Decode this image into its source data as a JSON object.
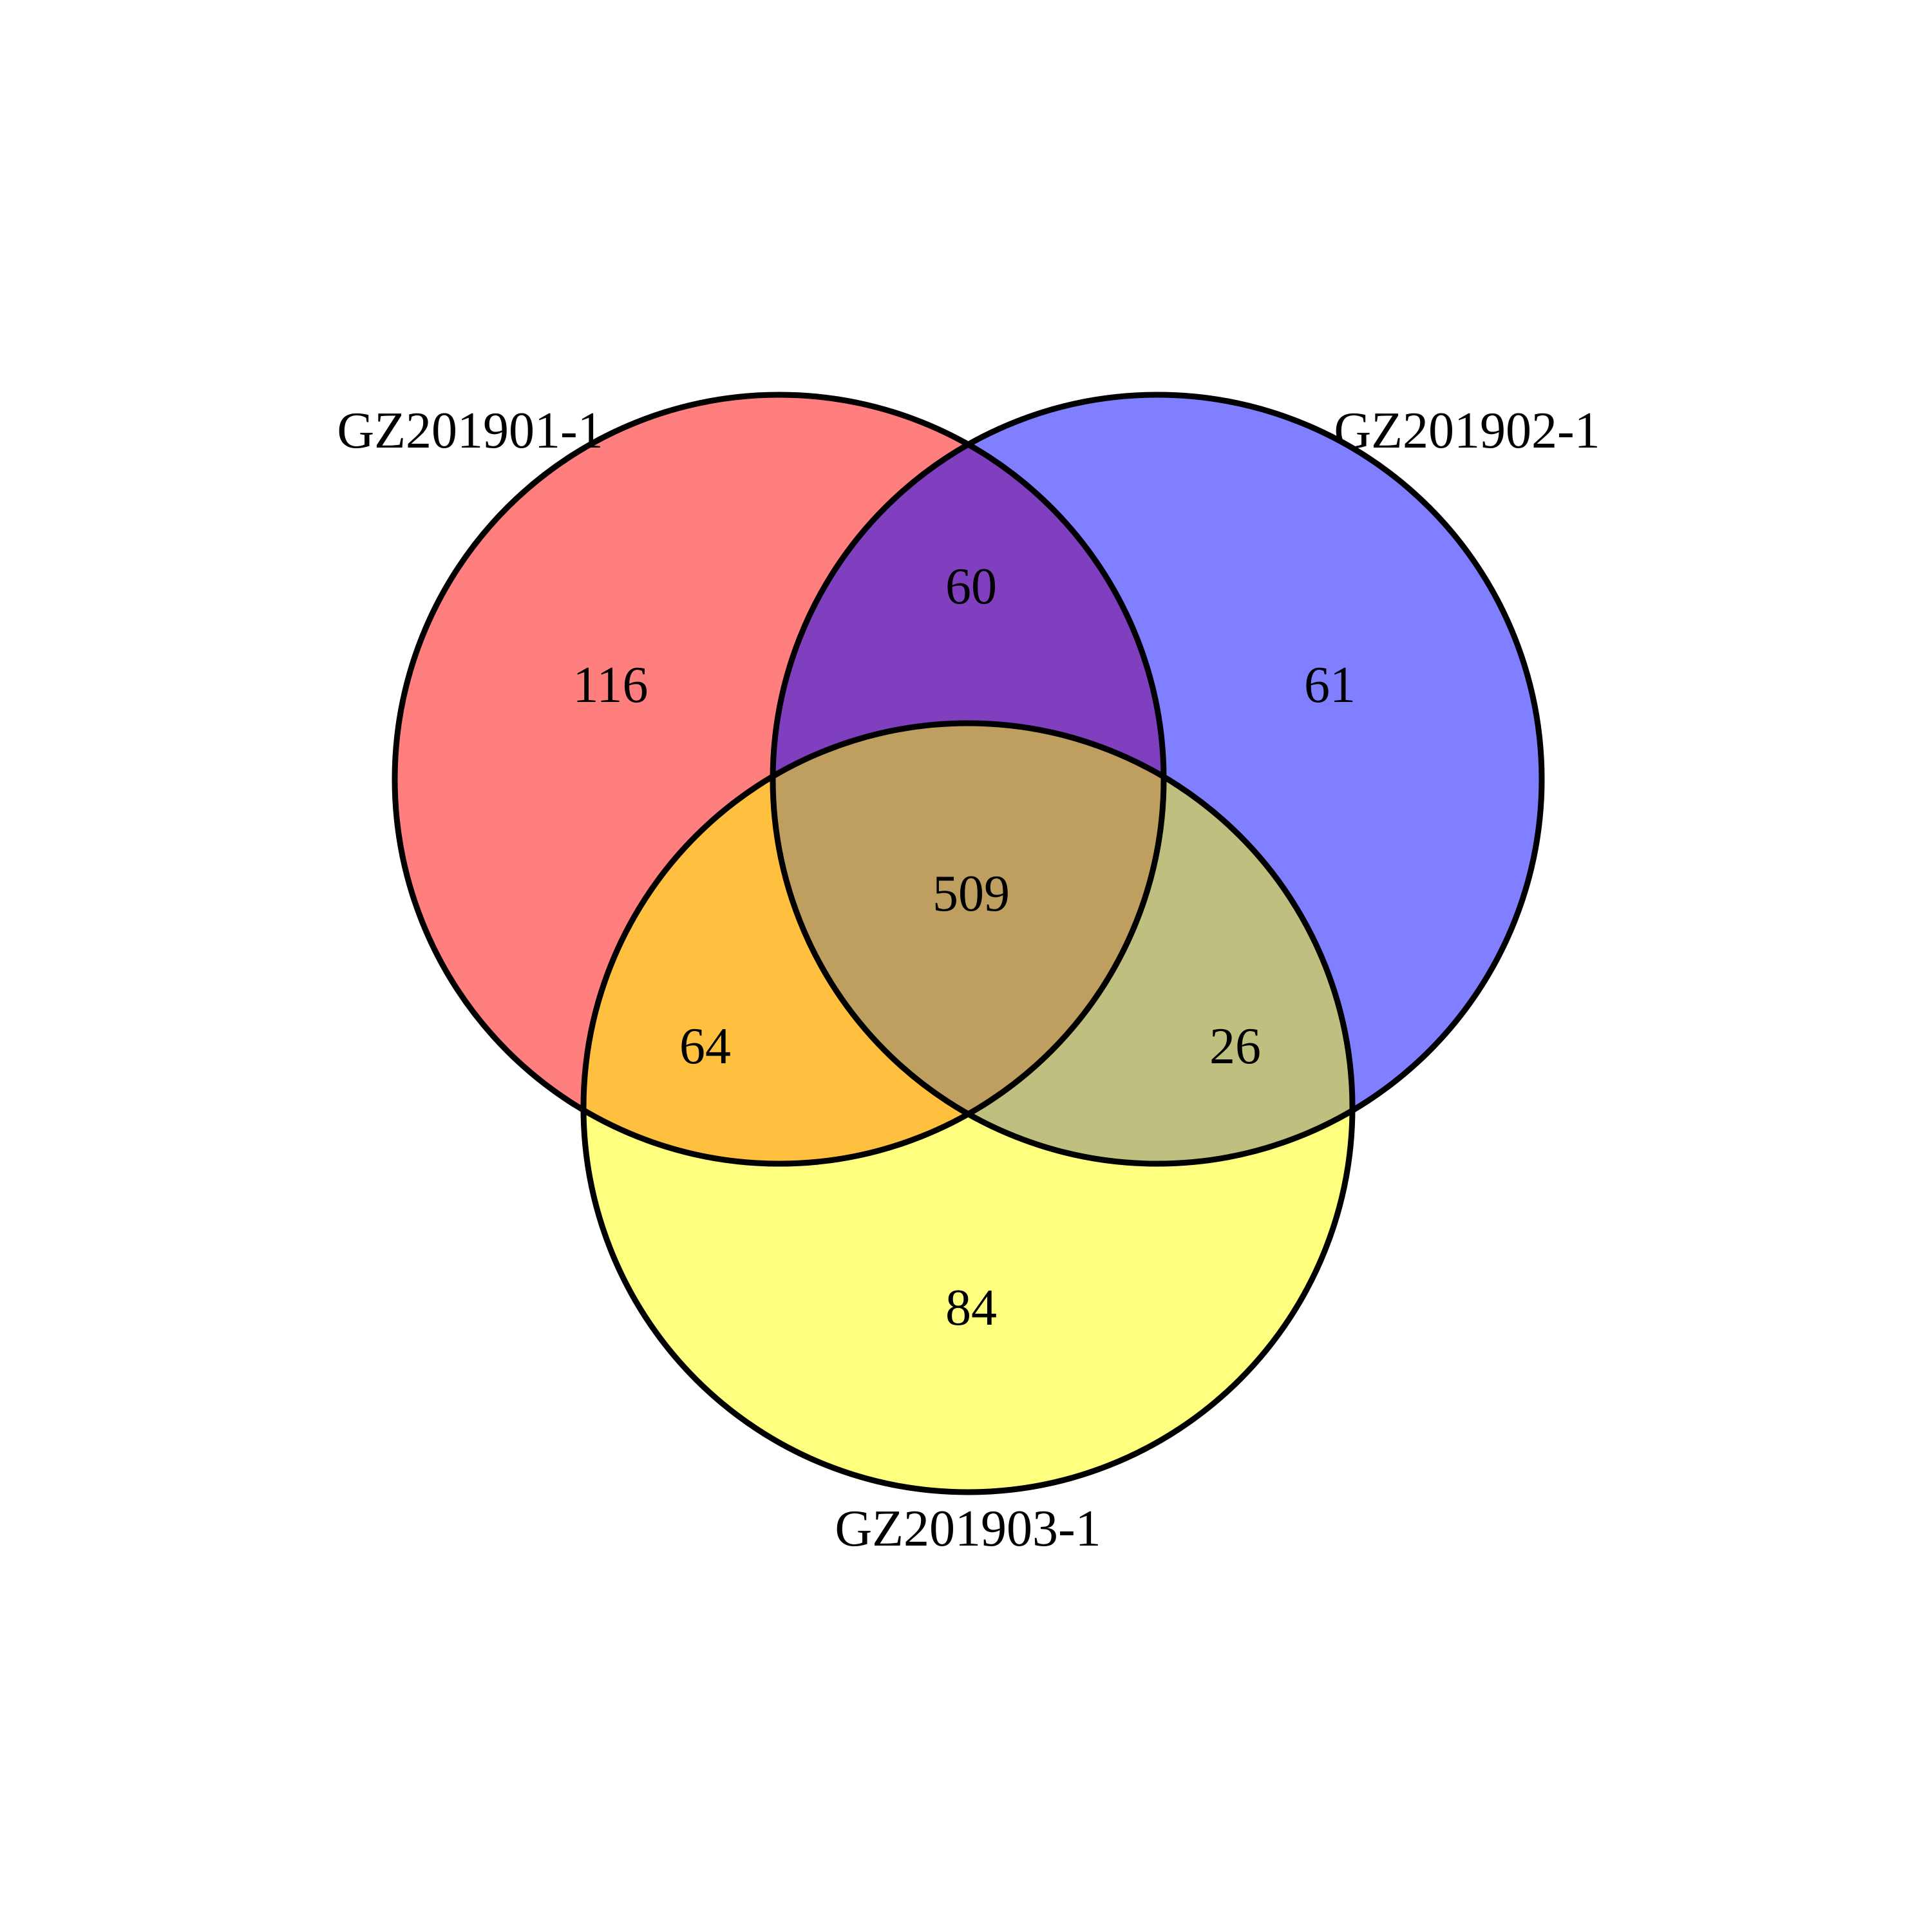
{
  "venn": {
    "sets": [
      {
        "id": "A",
        "label": "GZ201901-1",
        "color": "#FF0000"
      },
      {
        "id": "B",
        "label": "GZ201902-1",
        "color": "#0000FF"
      },
      {
        "id": "C",
        "label": "GZ201903-1",
        "color": "#FFFF00"
      }
    ],
    "regions": {
      "a_only": 116,
      "b_only": 61,
      "c_only": 84,
      "ab_only": 60,
      "ac_only": 64,
      "bc_only": 26,
      "abc": 509
    },
    "fill_opacity": 0.5,
    "outline_color": "#000000"
  }
}
